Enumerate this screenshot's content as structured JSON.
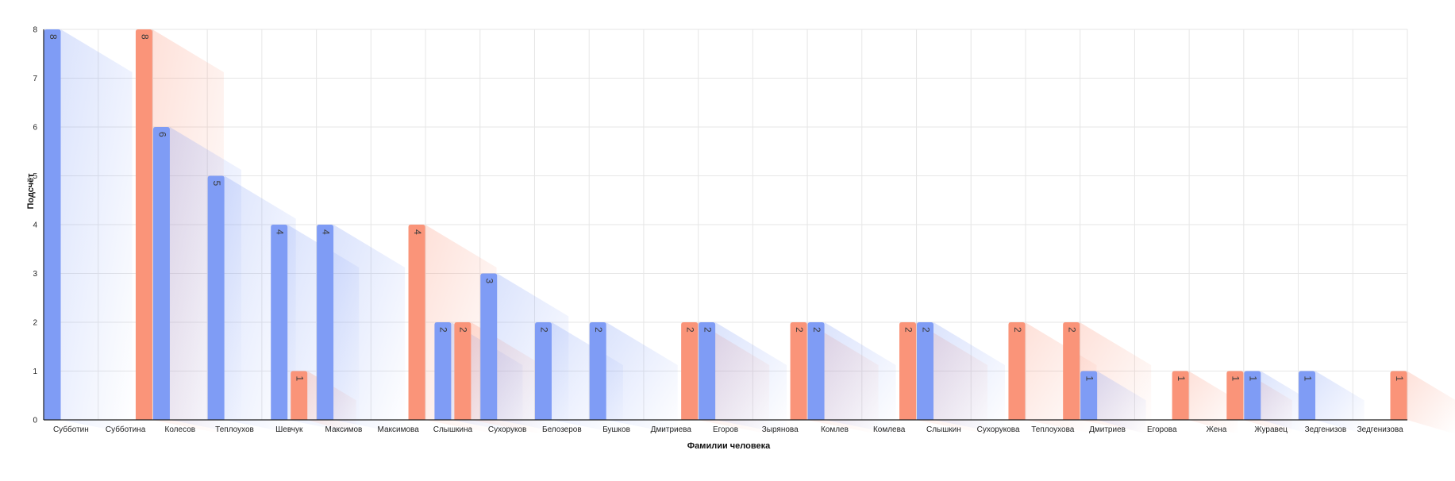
{
  "colors": {
    "male": "#7f9cf5",
    "female": "#fa9479",
    "grid": "#e6e6e6",
    "axis": "#222222"
  },
  "chart_data": {
    "type": "bar",
    "title": "",
    "xlabel": "Фамилии человека",
    "ylabel": "Подсчёт",
    "ylim": [
      0,
      8
    ],
    "yticks": [
      0,
      1,
      2,
      3,
      4,
      5,
      6,
      7,
      8
    ],
    "grid": true,
    "legend": "none",
    "categories": [
      "Субботин",
      "Субботина",
      "Колесов",
      "Теплоухов",
      "Шевчук",
      "Максимов",
      "Максимова",
      "Слышкина",
      "Сухоруков",
      "Белозеров",
      "Бушков",
      "Дмитриева",
      "Егоров",
      "Зырянова",
      "Комлев",
      "Комлева",
      "Слышкин",
      "Сухорукова",
      "Теплоухова",
      "Дмитриев",
      "Егорова",
      "Жена",
      "Журавец",
      "Зедгенизов",
      "Зедгенизова"
    ],
    "series": [
      {
        "key": "male",
        "values": [
          8,
          null,
          6,
          5,
          4,
          4,
          null,
          2,
          3,
          2,
          2,
          null,
          2,
          null,
          2,
          null,
          2,
          null,
          null,
          1,
          null,
          null,
          1,
          1,
          null
        ]
      },
      {
        "key": "female",
        "values": [
          null,
          8,
          null,
          null,
          1,
          null,
          4,
          2,
          null,
          null,
          null,
          2,
          null,
          2,
          null,
          2,
          null,
          2,
          2,
          null,
          1,
          1,
          null,
          null,
          1
        ]
      }
    ]
  }
}
